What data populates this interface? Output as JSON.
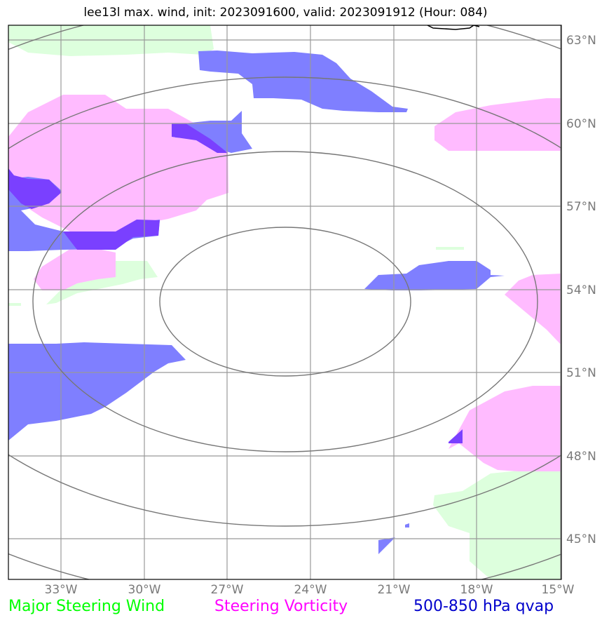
{
  "title": "lee13l max. wind, init: 2023091600, valid: 2023091912 (Hour: 084)",
  "axes": {
    "lat_labels": [
      "63°N",
      "60°N",
      "57°N",
      "54°N",
      "51°N",
      "48°N",
      "45°N"
    ],
    "lon_labels": [
      "33°W",
      "30°W",
      "27°W",
      "24°W",
      "21°W",
      "18°W",
      "15°W"
    ],
    "lat_range": [
      43.6,
      63.5
    ],
    "lon_range": [
      -34.9,
      -15.0
    ],
    "grid": true
  },
  "legend": {
    "wind": "Major Steering Wind",
    "vorticity": "Steering Vorticity",
    "qvap": "500-850 hPa qvap"
  },
  "colors": {
    "wind": "#ddffdd",
    "vorticity": "#ffbbff",
    "qvap": "#7f7fff",
    "overlap": "#7a40ff",
    "rings": "#777777",
    "grid": "#999999"
  },
  "range_rings_center": {
    "lat": 53.6,
    "lon": -25.0
  }
}
